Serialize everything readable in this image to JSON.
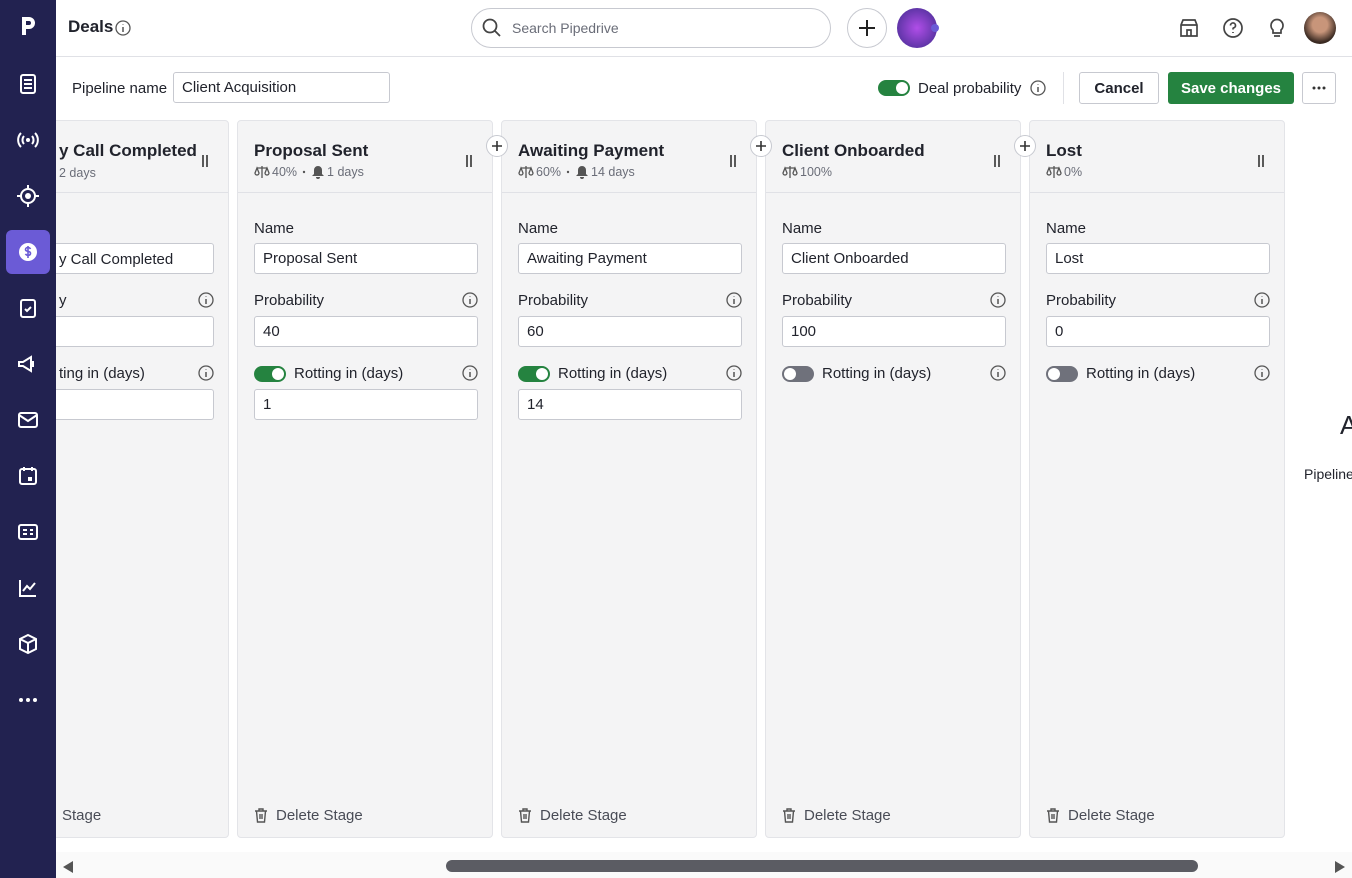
{
  "header": {
    "title": "Deals",
    "search_placeholder": "Search Pipedrive"
  },
  "toolbar": {
    "pipeline_name_label": "Pipeline name",
    "pipeline_name": "Client Acquisition",
    "deal_probability_label": "Deal probability",
    "deal_probability_enabled": true,
    "cancel": "Cancel",
    "save": "Save changes"
  },
  "labels": {
    "name": "Name",
    "probability": "Probability",
    "rotting": "Rotting in (days)",
    "delete": "Delete Stage"
  },
  "clipped_stage": {
    "title": "y Call Completed",
    "rotting_meta": "2 days",
    "name": "y Call Completed",
    "probability_label": "y",
    "rotting_label": "ting in (days)",
    "delete": "Stage"
  },
  "stages": [
    {
      "title": "Proposal Sent",
      "probability_meta": "40%",
      "rotting_meta": "1 days",
      "probability": "40",
      "rotting_enabled": true,
      "rotting": "1"
    },
    {
      "title": "Awaiting Payment",
      "probability_meta": "60%",
      "rotting_meta": "14 days",
      "probability": "60",
      "rotting_enabled": true,
      "rotting": "14"
    },
    {
      "title": "Client Onboarded",
      "probability_meta": "100%",
      "probability": "100",
      "rotting_enabled": false
    },
    {
      "title": "Lost",
      "probability_meta": "0%",
      "probability": "0",
      "rotting_enabled": false
    }
  ],
  "side_panel": {
    "heading": "A",
    "text": "Pipeline"
  }
}
